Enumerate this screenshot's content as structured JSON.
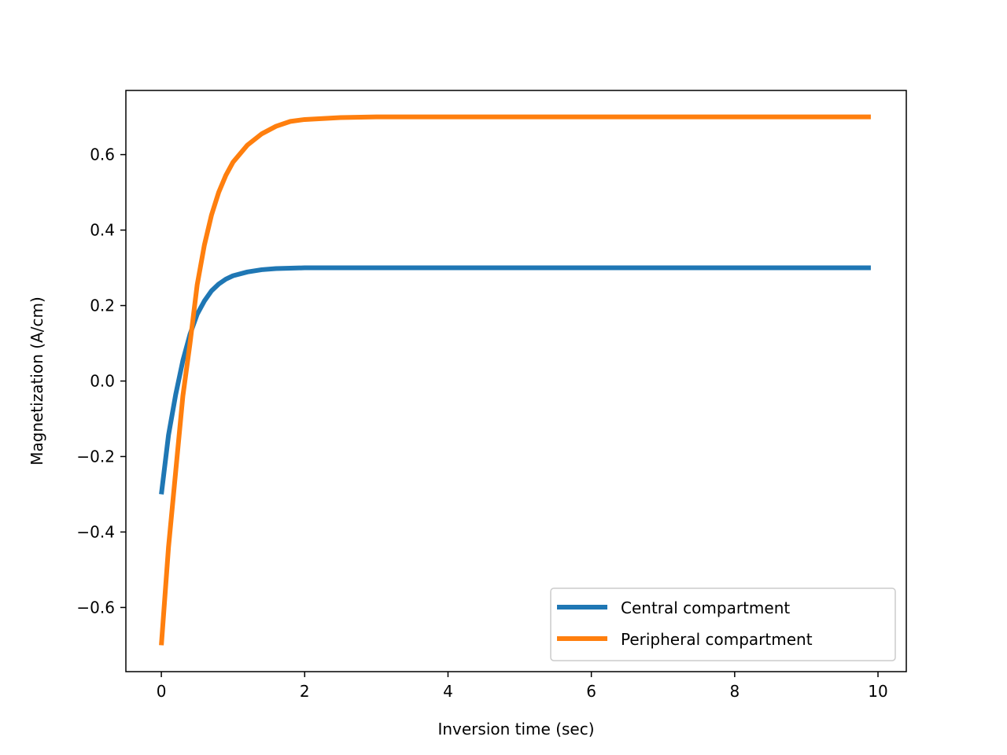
{
  "chart_data": {
    "type": "line",
    "title": "",
    "xlabel": "Inversion time (sec)",
    "ylabel": "Magnetization (A/cm)",
    "xlim": [
      -0.495,
      10.395
    ],
    "ylim": [
      -0.77,
      0.77
    ],
    "xticks": [
      0,
      2,
      4,
      6,
      8,
      10
    ],
    "xtick_labels": [
      "0",
      "2",
      "4",
      "6",
      "8",
      "10"
    ],
    "yticks": [
      -0.6,
      -0.4,
      -0.2,
      0.0,
      0.2,
      0.4,
      0.6
    ],
    "ytick_labels": [
      "−0.6",
      "−0.4",
      "−0.2",
      "0.0",
      "0.2",
      "0.4",
      "0.6"
    ],
    "grid": false,
    "legend_position": "lower-right",
    "x": [
      0,
      0.1,
      0.2,
      0.3,
      0.4,
      0.5,
      0.6,
      0.7,
      0.8,
      0.9,
      1.0,
      1.2,
      1.4,
      1.6,
      1.8,
      2.0,
      2.5,
      3.0,
      3.5,
      4.0,
      5.0,
      6.0,
      7.0,
      8.0,
      9.0,
      9.9
    ],
    "series": [
      {
        "name": "Central compartment",
        "color": "#1f77b4",
        "values": [
          -0.3,
          -0.143,
          -0.036,
          0.054,
          0.124,
          0.177,
          0.212,
          0.239,
          0.257,
          0.27,
          0.279,
          0.289,
          0.295,
          0.298,
          0.299,
          0.3,
          0.3,
          0.3,
          0.3,
          0.3,
          0.3,
          0.3,
          0.3,
          0.3,
          0.3,
          0.3
        ]
      },
      {
        "name": "Peripheral compartment",
        "color": "#ff7f0e",
        "values": [
          -0.7,
          -0.44,
          -0.24,
          -0.04,
          0.1,
          0.255,
          0.36,
          0.44,
          0.5,
          0.545,
          0.58,
          0.625,
          0.655,
          0.675,
          0.688,
          0.693,
          0.698,
          0.7,
          0.7,
          0.7,
          0.7,
          0.7,
          0.7,
          0.7,
          0.7,
          0.7
        ]
      }
    ]
  }
}
